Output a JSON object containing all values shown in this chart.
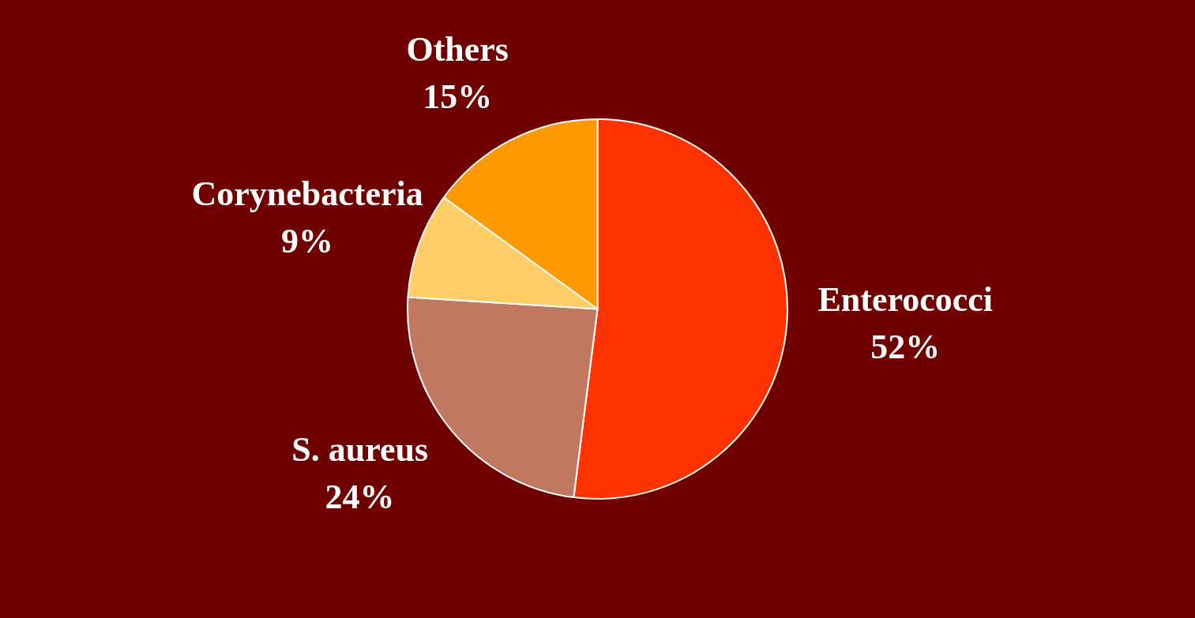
{
  "chart_data": {
    "type": "pie",
    "categories": [
      "Enterococci",
      "S. aureus",
      "Corynebacteria",
      "Others"
    ],
    "values": [
      52,
      24,
      9,
      15
    ],
    "value_labels": [
      "52%",
      "24%",
      "9%",
      "15%"
    ],
    "colors": [
      "#ff3300",
      "#c07860",
      "#ffcc66",
      "#ff9900"
    ],
    "legend": false
  }
}
